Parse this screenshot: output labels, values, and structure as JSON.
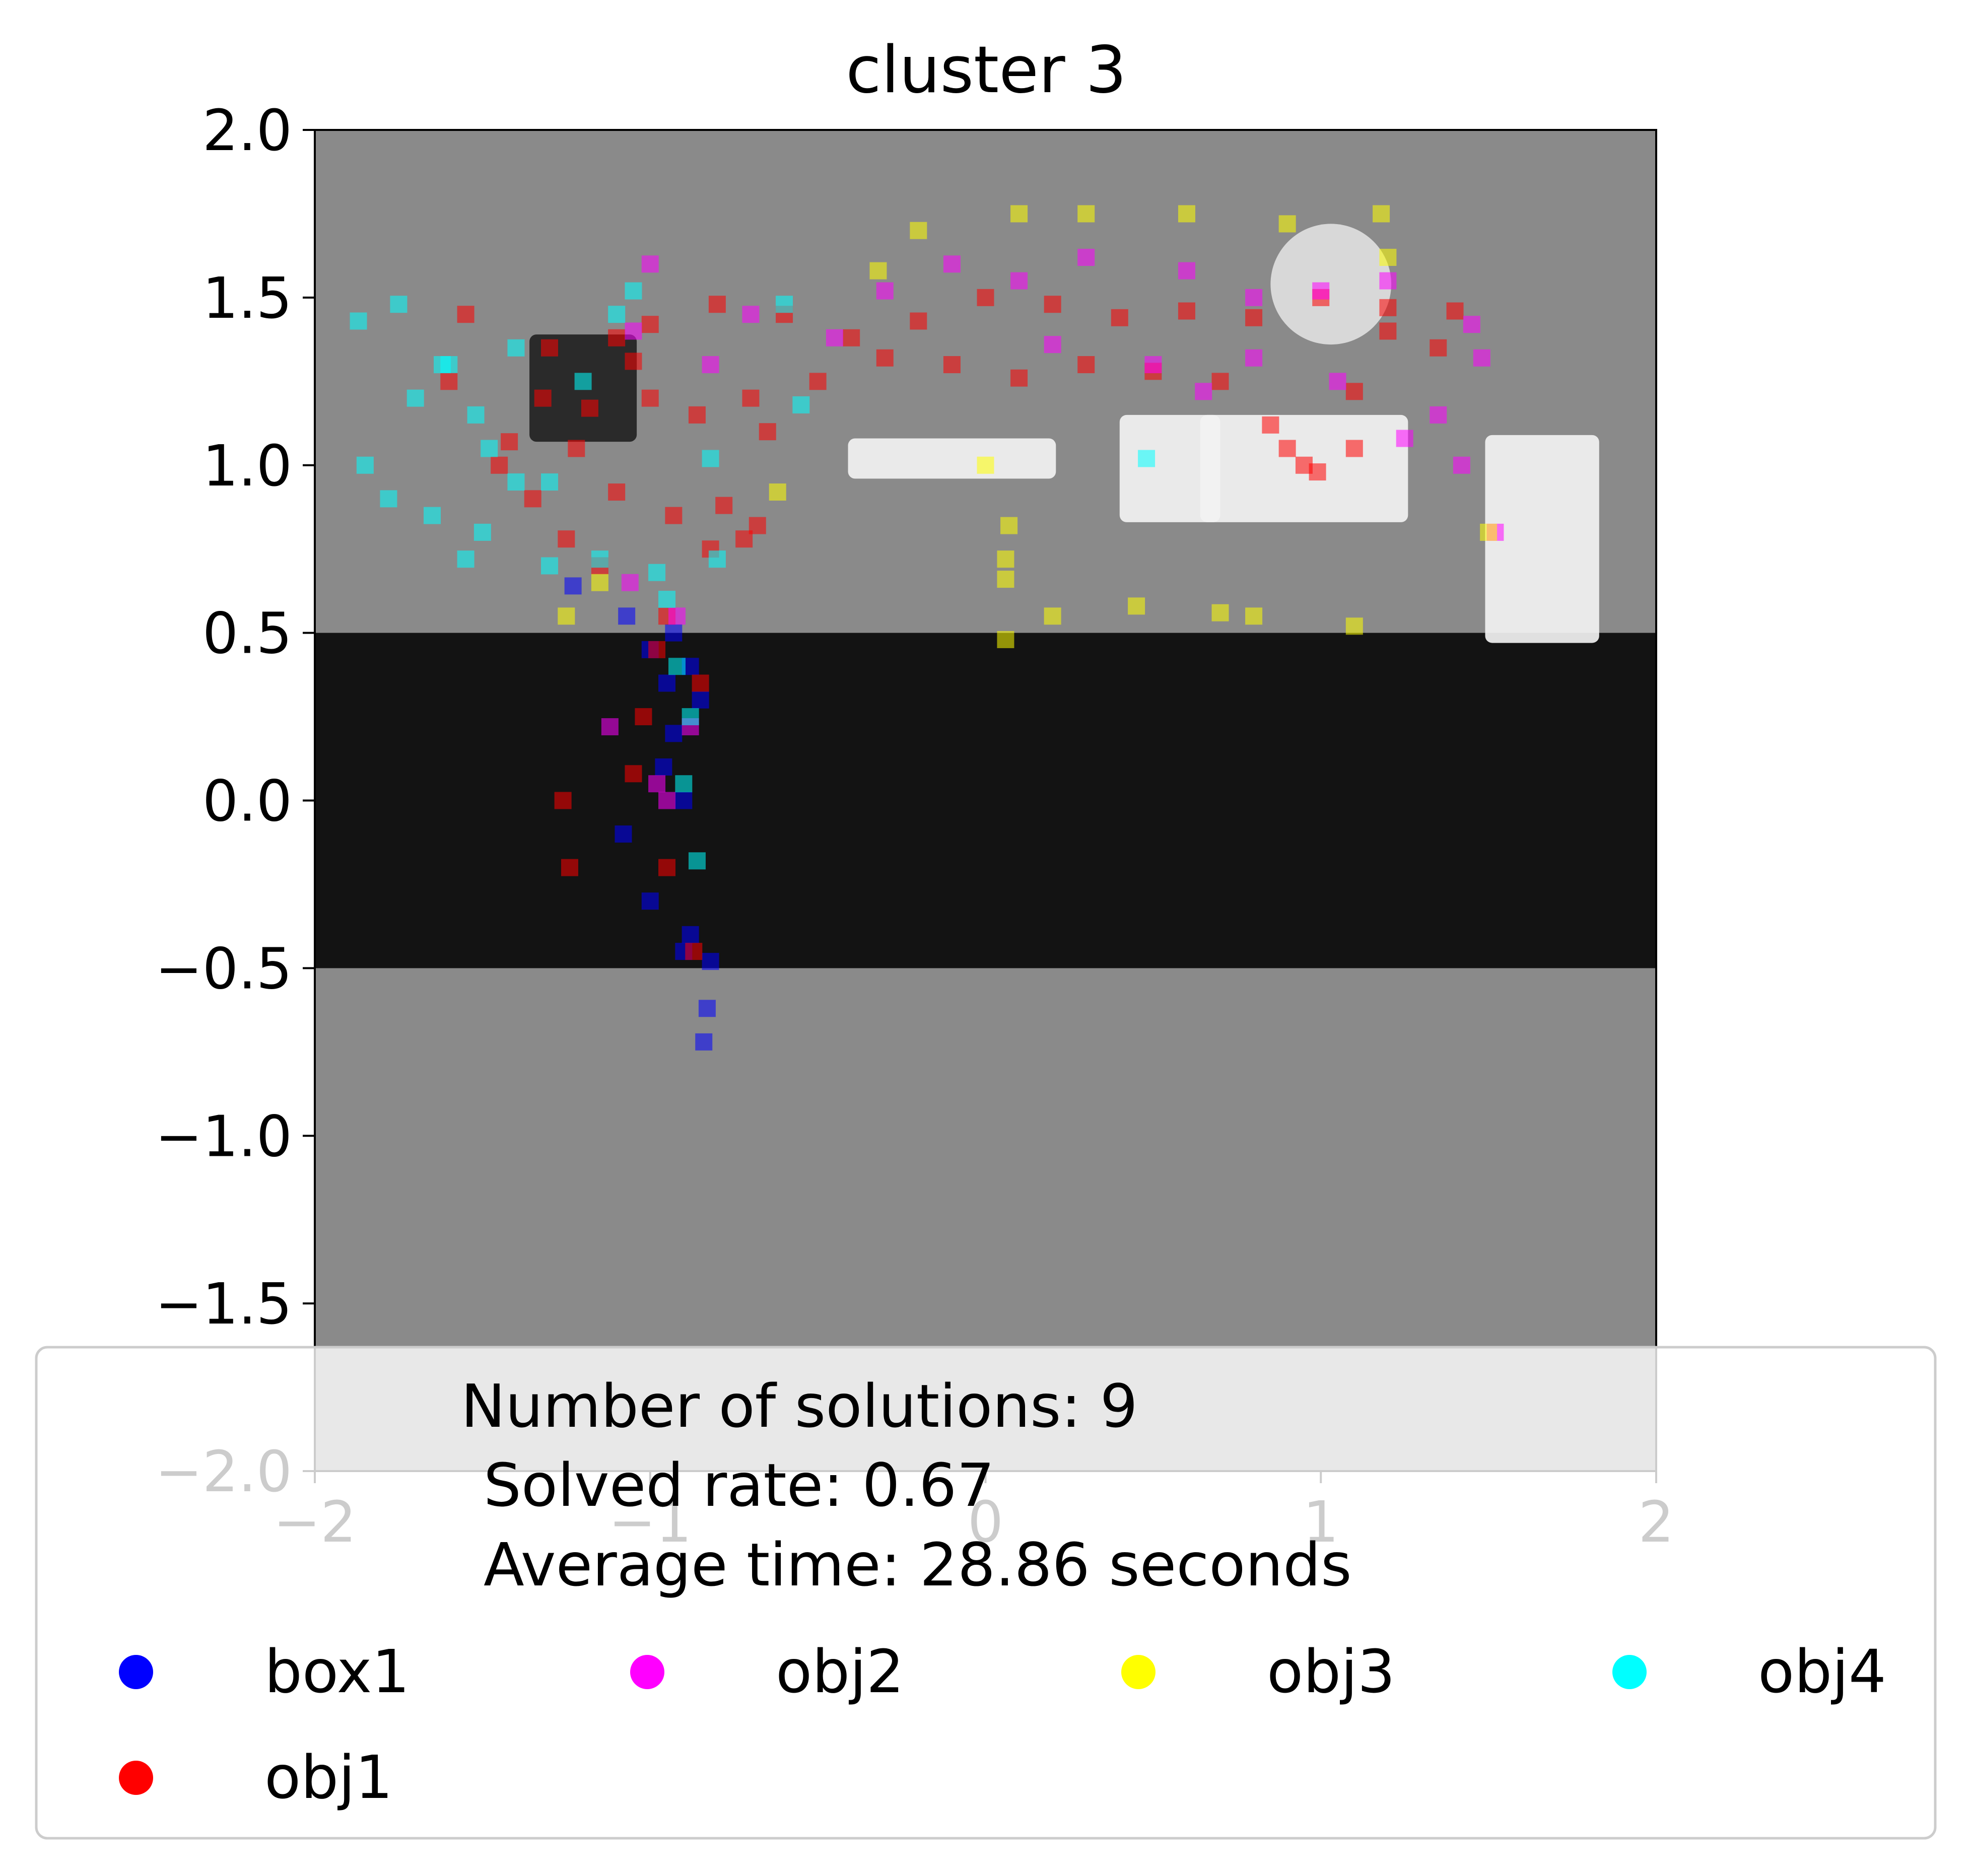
{
  "chart_data": {
    "type": "scatter",
    "title": "cluster 3",
    "xlabel": "",
    "ylabel": "",
    "xlim": [
      -2,
      2
    ],
    "ylim": [
      -2,
      2
    ],
    "x_ticks": [
      "−2",
      "−1",
      "0",
      "1",
      "2"
    ],
    "y_ticks": [
      "2.0",
      "1.5",
      "1.0",
      "0.5",
      "0.0",
      "−0.5",
      "−1.0",
      "−1.5",
      "−2.0"
    ],
    "x_tick_values": [
      -2,
      -1,
      0,
      1,
      2
    ],
    "y_tick_values": [
      2.0,
      1.5,
      1.0,
      0.5,
      0.0,
      -0.5,
      -1.0,
      -1.5,
      -2.0
    ],
    "grid": false,
    "background": {
      "floor_color": "#8a8a8a",
      "band": {
        "y_range": [
          -0.5,
          0.5
        ],
        "color": "#131313"
      },
      "obstacles": [
        {
          "type": "box",
          "center": [
            -1.2,
            1.23
          ],
          "size": [
            0.32,
            0.32
          ],
          "color": "#222222"
        },
        {
          "type": "box",
          "center": [
            -0.1,
            1.02
          ],
          "size": [
            0.62,
            0.12
          ],
          "color": "#f2f2f2"
        },
        {
          "type": "box",
          "center": [
            0.55,
            0.99
          ],
          "size": [
            0.3,
            0.32
          ],
          "color": "#f2f2f2"
        },
        {
          "type": "box",
          "center": [
            0.95,
            0.99
          ],
          "size": [
            0.62,
            0.32
          ],
          "color": "#f2f2f2"
        },
        {
          "type": "box",
          "center": [
            1.66,
            0.78
          ],
          "size": [
            0.34,
            0.62
          ],
          "color": "#f2f2f2"
        },
        {
          "type": "circle",
          "center": [
            1.03,
            1.54
          ],
          "radius": 0.18,
          "color": "#d8d8d8"
        }
      ]
    },
    "series": [
      {
        "name": "box1",
        "color": "#0000ff",
        "x": [
          -1.23,
          -1.07,
          -0.93,
          -0.88,
          -0.85,
          -0.93,
          -0.96,
          -1.08,
          -1.0,
          -0.9,
          -0.82,
          -0.83,
          -0.84,
          -0.88,
          -1.0,
          -0.95,
          -0.9
        ],
        "y": [
          0.64,
          0.55,
          0.5,
          0.4,
          0.3,
          0.2,
          0.1,
          -0.1,
          -0.3,
          -0.45,
          -0.48,
          -0.62,
          -0.72,
          -0.4,
          0.45,
          0.35,
          0.0
        ]
      },
      {
        "name": "obj1",
        "color": "#ff0000",
        "x": [
          -1.0,
          -1.18,
          -1.32,
          -1.05,
          -0.86,
          -0.93,
          -0.98,
          -0.85,
          -1.02,
          -1.05,
          -1.24,
          -1.26,
          -0.95,
          -0.87,
          -1.1,
          -0.78,
          -0.65,
          -1.3,
          -1.55,
          -1.6,
          -1.42,
          -1.22,
          -1.0,
          -0.8,
          -0.6,
          -0.4,
          -0.2,
          0.0,
          0.2,
          0.4,
          0.6,
          0.8,
          1.0,
          1.2,
          1.4,
          1.2,
          0.9,
          0.95,
          0.99,
          0.85,
          1.1,
          0.7,
          0.5,
          0.3,
          0.1,
          -0.1,
          -0.3,
          -0.5,
          -0.7,
          -1.1,
          -1.35,
          -1.45,
          -1.25,
          -1.15,
          -0.95,
          -0.72,
          -0.82,
          -0.68,
          1.35,
          1.1
        ],
        "y": [
          1.42,
          1.17,
          1.2,
          1.31,
          1.15,
          0.85,
          0.45,
          0.35,
          0.25,
          0.08,
          -0.2,
          0.0,
          -0.2,
          -0.45,
          1.38,
          0.88,
          1.1,
          1.35,
          1.45,
          1.25,
          1.07,
          1.05,
          1.2,
          1.48,
          1.45,
          1.38,
          1.43,
          1.5,
          1.48,
          1.44,
          1.46,
          1.44,
          1.5,
          1.47,
          1.46,
          1.4,
          1.05,
          1.0,
          0.98,
          1.12,
          1.05,
          1.25,
          1.28,
          1.3,
          1.26,
          1.3,
          1.32,
          1.25,
          1.2,
          0.92,
          0.9,
          1.0,
          0.78,
          0.7,
          0.55,
          0.78,
          0.75,
          0.82,
          1.35,
          1.22
        ]
      },
      {
        "name": "obj2",
        "color": "#ff00ff",
        "x": [
          -1.06,
          -1.12,
          -0.92,
          -0.7,
          -0.45,
          -0.3,
          -0.1,
          0.1,
          0.3,
          0.6,
          0.8,
          1.0,
          1.2,
          1.45,
          1.48,
          1.35,
          1.52,
          1.42,
          -0.95,
          -0.88,
          -1.0,
          -1.05,
          -0.82,
          -0.98,
          0.2,
          0.5,
          0.8,
          1.05,
          1.25,
          0.65
        ],
        "y": [
          0.65,
          0.22,
          0.55,
          1.45,
          1.38,
          1.52,
          1.6,
          1.55,
          1.62,
          1.58,
          1.5,
          1.52,
          1.55,
          1.42,
          1.32,
          1.15,
          0.8,
          1.0,
          0.0,
          0.22,
          1.6,
          1.4,
          1.3,
          0.05,
          1.36,
          1.3,
          1.32,
          1.25,
          1.08,
          1.22
        ]
      },
      {
        "name": "obj3",
        "color": "#ffff00",
        "x": [
          1.18,
          -0.32,
          0.0,
          0.07,
          0.06,
          0.06,
          0.06,
          -0.62,
          -1.15,
          -1.25,
          0.1,
          0.3,
          0.6,
          0.9,
          1.2,
          -0.2,
          0.2,
          0.45,
          0.8,
          1.1,
          1.5,
          0.7
        ],
        "y": [
          1.75,
          1.58,
          1.0,
          0.82,
          0.72,
          0.66,
          0.48,
          0.92,
          0.65,
          0.55,
          1.75,
          1.75,
          1.75,
          1.72,
          1.62,
          1.7,
          0.55,
          0.58,
          0.55,
          0.52,
          0.8,
          0.56
        ]
      },
      {
        "name": "obj4",
        "color": "#00ffff",
        "x": [
          -1.75,
          -1.87,
          -1.62,
          -1.7,
          -1.52,
          -1.48,
          -1.4,
          -1.5,
          -1.65,
          -1.78,
          -1.85,
          -1.55,
          -1.3,
          -1.15,
          -1.05,
          -0.92,
          -0.88,
          -0.9,
          -0.86,
          -0.82,
          -0.98,
          -0.6,
          -0.55,
          0.48,
          -1.2,
          -1.4,
          -1.6,
          -1.3,
          -1.1,
          -0.95,
          -0.8
        ],
        "y": [
          1.48,
          1.43,
          1.3,
          1.2,
          1.15,
          1.05,
          0.95,
          0.8,
          0.85,
          0.9,
          1.0,
          0.72,
          0.7,
          0.72,
          1.52,
          0.4,
          0.25,
          0.05,
          -0.18,
          1.02,
          0.68,
          1.48,
          1.18,
          1.02,
          1.25,
          1.35,
          1.3,
          0.95,
          1.45,
          0.6,
          0.72
        ]
      }
    ],
    "legend": {
      "placement": "lower center",
      "text_lines": [
        "Number of solutions: 9",
        "Solved rate: 0.67",
        "Average time: 28.86 seconds"
      ],
      "entries": [
        {
          "label": "box1",
          "color": "#0000ff"
        },
        {
          "label": "obj2",
          "color": "#ff00ff"
        },
        {
          "label": "obj3",
          "color": "#ffff00"
        },
        {
          "label": "obj4",
          "color": "#00ffff"
        },
        {
          "label": "obj1",
          "color": "#ff0000"
        }
      ]
    }
  }
}
